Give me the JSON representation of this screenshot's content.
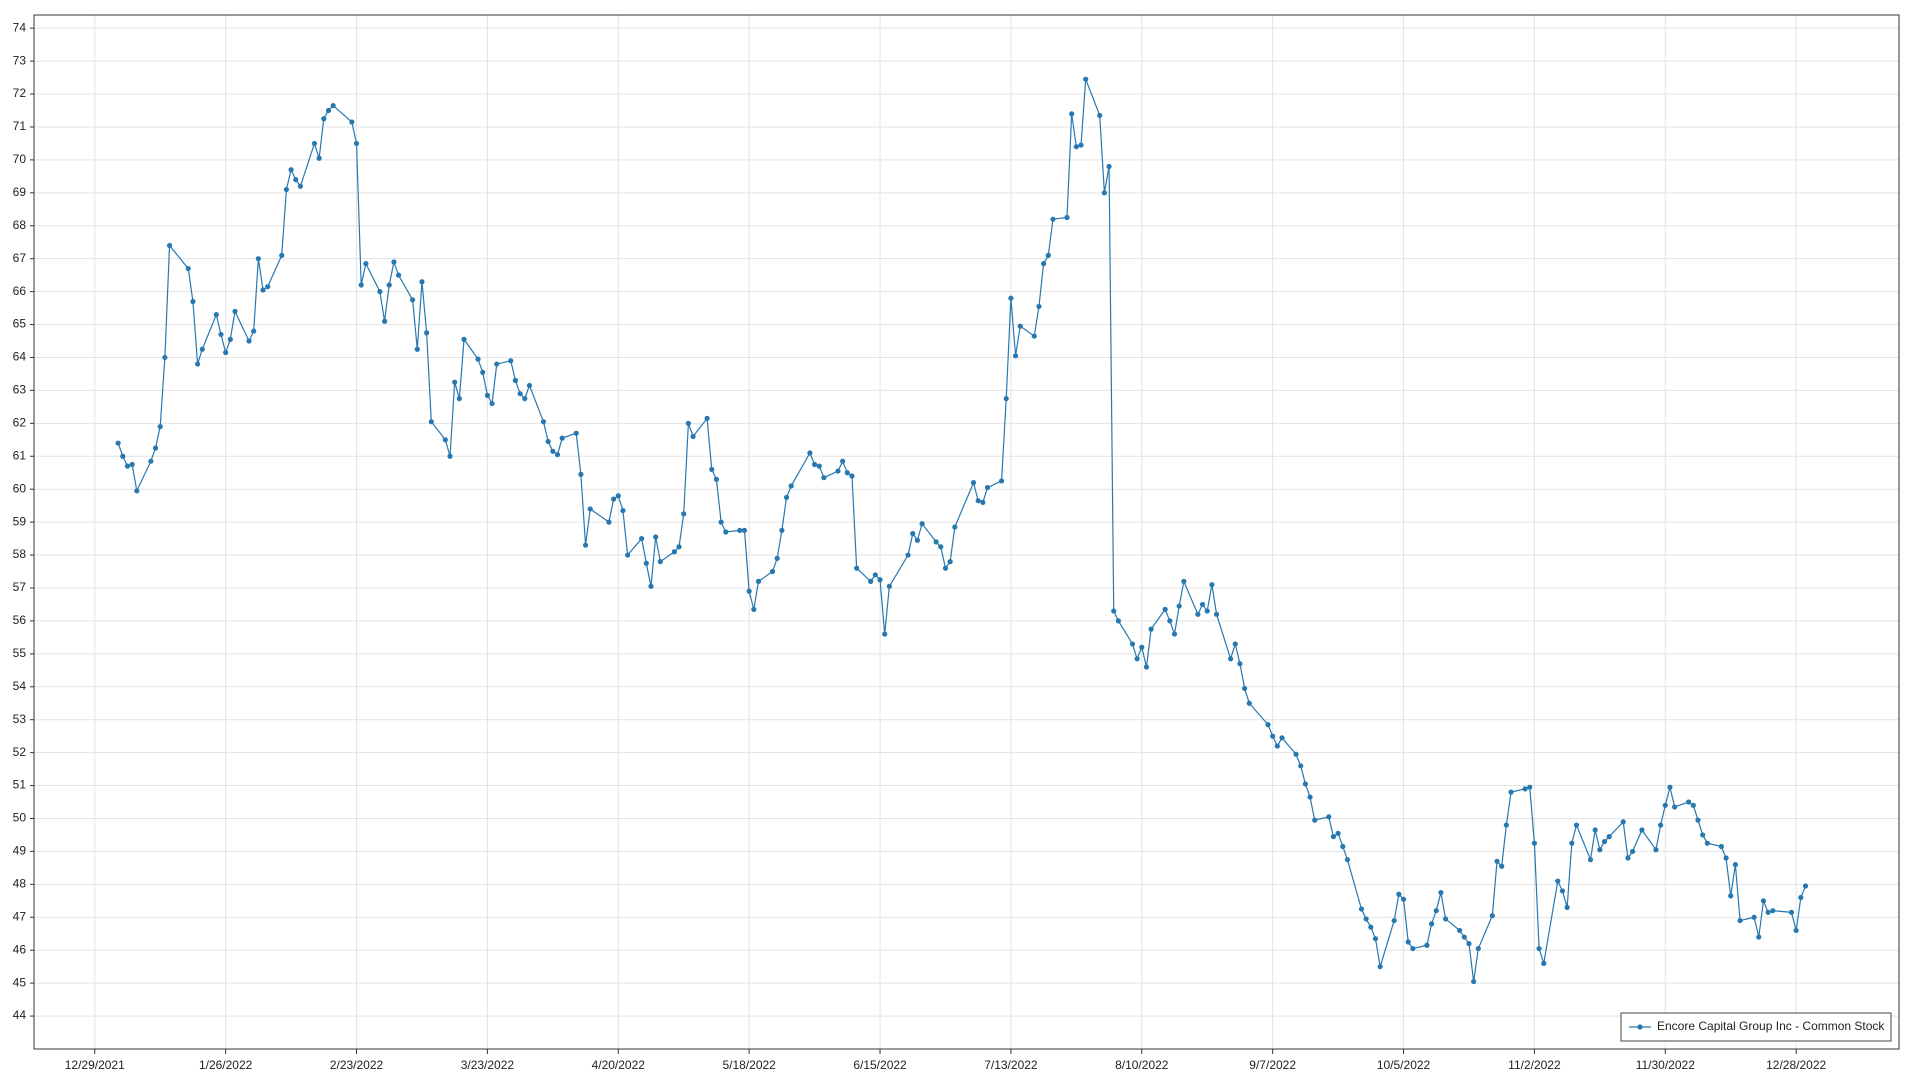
{
  "chart_data": {
    "type": "line",
    "x": [
      "1/3/2022",
      "1/4/2022",
      "1/5/2022",
      "1/6/2022",
      "1/7/2022",
      "1/10/2022",
      "1/11/2022",
      "1/12/2022",
      "1/13/2022",
      "1/14/2022",
      "1/18/2022",
      "1/19/2022",
      "1/20/2022",
      "1/21/2022",
      "1/24/2022",
      "1/25/2022",
      "1/26/2022",
      "1/27/2022",
      "1/28/2022",
      "1/31/2022",
      "2/1/2022",
      "2/2/2022",
      "2/3/2022",
      "2/4/2022",
      "2/7/2022",
      "2/8/2022",
      "2/9/2022",
      "2/10/2022",
      "2/11/2022",
      "2/14/2022",
      "2/15/2022",
      "2/16/2022",
      "2/17/2022",
      "2/18/2022",
      "2/22/2022",
      "2/23/2022",
      "2/24/2022",
      "2/25/2022",
      "2/28/2022",
      "3/1/2022",
      "3/2/2022",
      "3/3/2022",
      "3/4/2022",
      "3/7/2022",
      "3/8/2022",
      "3/9/2022",
      "3/10/2022",
      "3/11/2022",
      "3/14/2022",
      "3/15/2022",
      "3/16/2022",
      "3/17/2022",
      "3/18/2022",
      "3/21/2022",
      "3/22/2022",
      "3/23/2022",
      "3/24/2022",
      "3/25/2022",
      "3/28/2022",
      "3/29/2022",
      "3/30/2022",
      "3/31/2022",
      "4/1/2022",
      "4/4/2022",
      "4/5/2022",
      "4/6/2022",
      "4/7/2022",
      "4/8/2022",
      "4/11/2022",
      "4/12/2022",
      "4/13/2022",
      "4/14/2022",
      "4/18/2022",
      "4/19/2022",
      "4/20/2022",
      "4/21/2022",
      "4/22/2022",
      "4/25/2022",
      "4/26/2022",
      "4/27/2022",
      "4/28/2022",
      "4/29/2022",
      "5/2/2022",
      "5/3/2022",
      "5/4/2022",
      "5/5/2022",
      "5/6/2022",
      "5/9/2022",
      "5/10/2022",
      "5/11/2022",
      "5/12/2022",
      "5/13/2022",
      "5/16/2022",
      "5/17/2022",
      "5/18/2022",
      "5/19/2022",
      "5/20/2022",
      "5/23/2022",
      "5/24/2022",
      "5/25/2022",
      "5/26/2022",
      "5/27/2022",
      "5/31/2022",
      "6/1/2022",
      "6/2/2022",
      "6/3/2022",
      "6/6/2022",
      "6/7/2022",
      "6/8/2022",
      "6/9/2022",
      "6/10/2022",
      "6/13/2022",
      "6/14/2022",
      "6/15/2022",
      "6/16/2022",
      "6/17/2022",
      "6/21/2022",
      "6/22/2022",
      "6/23/2022",
      "6/24/2022",
      "6/27/2022",
      "6/28/2022",
      "6/29/2022",
      "6/30/2022",
      "7/1/2022",
      "7/5/2022",
      "7/6/2022",
      "7/7/2022",
      "7/8/2022",
      "7/11/2022",
      "7/12/2022",
      "7/13/2022",
      "7/14/2022",
      "7/15/2022",
      "7/18/2022",
      "7/19/2022",
      "7/20/2022",
      "7/21/2022",
      "7/22/2022",
      "7/25/2022",
      "7/26/2022",
      "7/27/2022",
      "7/28/2022",
      "7/29/2022",
      "8/1/2022",
      "8/2/2022",
      "8/3/2022",
      "8/4/2022",
      "8/5/2022",
      "8/8/2022",
      "8/9/2022",
      "8/10/2022",
      "8/11/2022",
      "8/12/2022",
      "8/15/2022",
      "8/16/2022",
      "8/17/2022",
      "8/18/2022",
      "8/19/2022",
      "8/22/2022",
      "8/23/2022",
      "8/24/2022",
      "8/25/2022",
      "8/26/2022",
      "8/29/2022",
      "8/30/2022",
      "8/31/2022",
      "9/1/2022",
      "9/2/2022",
      "9/6/2022",
      "9/7/2022",
      "9/8/2022",
      "9/9/2022",
      "9/12/2022",
      "9/13/2022",
      "9/14/2022",
      "9/15/2022",
      "9/16/2022",
      "9/19/2022",
      "9/20/2022",
      "9/21/2022",
      "9/22/2022",
      "9/23/2022",
      "9/26/2022",
      "9/27/2022",
      "9/28/2022",
      "9/29/2022",
      "9/30/2022",
      "10/3/2022",
      "10/4/2022",
      "10/5/2022",
      "10/6/2022",
      "10/7/2022",
      "10/10/2022",
      "10/11/2022",
      "10/12/2022",
      "10/13/2022",
      "10/14/2022",
      "10/17/2022",
      "10/18/2022",
      "10/19/2022",
      "10/20/2022",
      "10/21/2022",
      "10/24/2022",
      "10/25/2022",
      "10/26/2022",
      "10/27/2022",
      "10/28/2022",
      "10/31/2022",
      "11/1/2022",
      "11/2/2022",
      "11/3/2022",
      "11/4/2022",
      "11/7/2022",
      "11/8/2022",
      "11/9/2022",
      "11/10/2022",
      "11/11/2022",
      "11/14/2022",
      "11/15/2022",
      "11/16/2022",
      "11/17/2022",
      "11/18/2022",
      "11/21/2022",
      "11/22/2022",
      "11/23/2022",
      "11/25/2022",
      "11/28/2022",
      "11/29/2022",
      "11/30/2022",
      "12/1/2022",
      "12/2/2022",
      "12/5/2022",
      "12/6/2022",
      "12/7/2022",
      "12/8/2022",
      "12/9/2022",
      "12/12/2022",
      "12/13/2022",
      "12/14/2022",
      "12/15/2022",
      "12/16/2022",
      "12/19/2022",
      "12/20/2022",
      "12/21/2022",
      "12/22/2022",
      "12/23/2022",
      "12/27/2022",
      "12/28/2022",
      "12/29/2022",
      "12/30/2022"
    ],
    "series": [
      {
        "name": "Encore Capital Group Inc - Common Stock",
        "color": "#2878b0",
        "values": [
          61.4,
          61.0,
          60.7,
          60.75,
          59.95,
          60.85,
          61.25,
          61.9,
          64.0,
          67.4,
          66.7,
          65.7,
          63.8,
          64.25,
          65.3,
          64.7,
          64.15,
          64.55,
          65.4,
          64.5,
          64.8,
          67.0,
          66.05,
          66.15,
          67.1,
          69.1,
          69.7,
          69.4,
          69.2,
          70.5,
          70.05,
          71.25,
          71.5,
          71.65,
          71.15,
          70.5,
          66.2,
          66.85,
          66.0,
          65.1,
          66.2,
          66.9,
          66.5,
          65.75,
          64.25,
          66.3,
          64.75,
          62.05,
          61.5,
          61.0,
          63.25,
          62.75,
          64.55,
          63.95,
          63.55,
          62.85,
          62.6,
          63.8,
          63.9,
          63.3,
          62.9,
          62.75,
          63.15,
          62.05,
          61.45,
          61.15,
          61.05,
          61.55,
          61.7,
          60.45,
          58.3,
          59.4,
          59.0,
          59.7,
          59.8,
          59.35,
          58.0,
          58.5,
          57.75,
          57.05,
          58.55,
          57.8,
          58.1,
          58.25,
          59.25,
          62.0,
          61.6,
          62.15,
          60.6,
          60.3,
          59.0,
          58.7,
          58.75,
          58.75,
          56.9,
          56.35,
          57.2,
          57.5,
          57.9,
          58.75,
          59.75,
          60.1,
          61.1,
          60.75,
          60.7,
          60.35,
          60.55,
          60.85,
          60.5,
          60.4,
          57.6,
          57.2,
          57.4,
          57.25,
          55.6,
          57.05,
          58.0,
          58.65,
          58.45,
          58.95,
          58.4,
          58.25,
          57.6,
          57.8,
          58.85,
          60.2,
          59.65,
          59.6,
          60.05,
          60.25,
          62.75,
          65.8,
          64.05,
          64.95,
          64.65,
          65.55,
          66.85,
          67.1,
          68.2,
          68.25,
          71.4,
          70.4,
          70.45,
          72.45,
          71.35,
          69.0,
          69.8,
          56.3,
          56.0,
          55.3,
          54.85,
          55.2,
          54.6,
          55.75,
          56.35,
          56.0,
          55.6,
          56.45,
          57.2,
          56.2,
          56.5,
          56.3,
          57.1,
          56.2,
          54.85,
          55.3,
          54.7,
          53.95,
          53.5,
          52.85,
          52.5,
          52.2,
          52.45,
          51.95,
          51.6,
          51.05,
          50.65,
          49.95,
          50.05,
          49.45,
          49.55,
          49.15,
          48.75,
          47.25,
          46.95,
          46.7,
          46.35,
          45.5,
          46.9,
          47.7,
          47.55,
          46.25,
          46.05,
          46.15,
          46.8,
          47.2,
          47.75,
          46.95,
          46.6,
          46.4,
          46.2,
          45.05,
          46.05,
          47.05,
          48.7,
          48.55,
          49.8,
          50.8,
          50.9,
          50.95,
          49.25,
          46.05,
          45.6,
          48.1,
          47.8,
          47.3,
          49.25,
          49.8,
          48.75,
          49.65,
          49.05,
          49.3,
          49.45,
          49.9,
          48.8,
          49.0,
          49.65,
          49.05,
          49.8,
          50.4,
          50.95,
          50.35,
          50.5,
          50.4,
          49.95,
          49.5,
          49.25,
          49.15,
          48.8,
          47.65,
          48.6,
          46.9,
          47.0,
          46.4,
          47.5,
          47.15,
          47.2,
          47.15,
          46.6,
          47.6,
          47.95
        ]
      }
    ],
    "xlim": [
      "12/16/2021",
      "1/19/2023"
    ],
    "xticks": [
      "12/29/2021",
      "1/26/2022",
      "2/23/2022",
      "3/23/2022",
      "4/20/2022",
      "5/18/2022",
      "6/15/2022",
      "7/13/2022",
      "8/10/2022",
      "9/7/2022",
      "10/5/2022",
      "11/2/2022",
      "11/30/2022",
      "12/28/2022"
    ],
    "ylim": [
      43,
      74.4
    ],
    "yticks": [
      44,
      45,
      46,
      47,
      48,
      49,
      50,
      51,
      52,
      53,
      54,
      55,
      56,
      57,
      58,
      59,
      60,
      61,
      62,
      63,
      64,
      65,
      66,
      67,
      68,
      69,
      70,
      71,
      72,
      73,
      74
    ],
    "grid": true,
    "legend": "lower right"
  }
}
